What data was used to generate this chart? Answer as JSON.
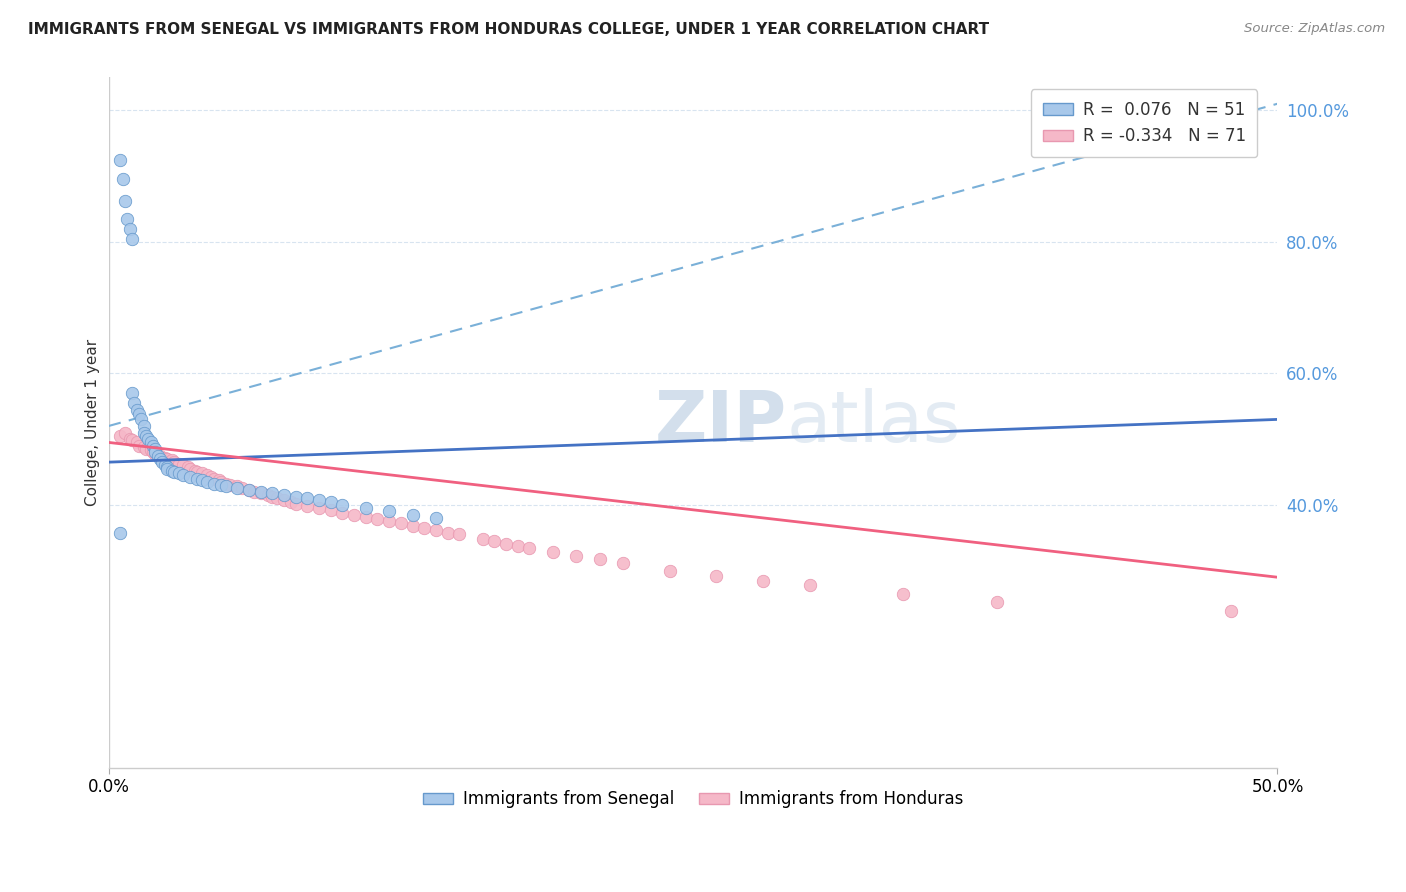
{
  "title": "IMMIGRANTS FROM SENEGAL VS IMMIGRANTS FROM HONDURAS COLLEGE, UNDER 1 YEAR CORRELATION CHART",
  "source": "Source: ZipAtlas.com",
  "ylabel": "College, Under 1 year",
  "r_senegal": 0.076,
  "n_senegal": 51,
  "r_honduras": -0.334,
  "n_honduras": 71,
  "senegal_dot_color": "#a8c8ea",
  "honduras_dot_color": "#f5b8c8",
  "senegal_line_color": "#4472c4",
  "honduras_line_color": "#f06080",
  "dashed_line_color": "#7ab0d8",
  "grid_color": "#d8e4f0",
  "watermark_color": "#c8d8e8",
  "xmin": 0.0,
  "xmax": 0.5,
  "ymin": 0.0,
  "ymax": 1.05,
  "ytick_positions": [
    0.4,
    0.6,
    0.8,
    1.0
  ],
  "ytick_labels": [
    "40.0%",
    "60.0%",
    "80.0%",
    "100.0%"
  ],
  "senegal_scatter_x": [
    0.005,
    0.006,
    0.007,
    0.008,
    0.009,
    0.01,
    0.01,
    0.011,
    0.012,
    0.013,
    0.014,
    0.015,
    0.015,
    0.016,
    0.017,
    0.018,
    0.019,
    0.02,
    0.02,
    0.021,
    0.022,
    0.023,
    0.024,
    0.025,
    0.025,
    0.027,
    0.028,
    0.03,
    0.032,
    0.035,
    0.038,
    0.04,
    0.042,
    0.045,
    0.048,
    0.05,
    0.055,
    0.06,
    0.065,
    0.07,
    0.075,
    0.08,
    0.085,
    0.09,
    0.095,
    0.1,
    0.11,
    0.12,
    0.13,
    0.14,
    0.005
  ],
  "senegal_scatter_y": [
    0.925,
    0.895,
    0.862,
    0.835,
    0.82,
    0.805,
    0.57,
    0.555,
    0.545,
    0.538,
    0.53,
    0.52,
    0.51,
    0.505,
    0.5,
    0.495,
    0.49,
    0.485,
    0.48,
    0.475,
    0.47,
    0.465,
    0.46,
    0.458,
    0.455,
    0.452,
    0.45,
    0.448,
    0.445,
    0.442,
    0.44,
    0.438,
    0.435,
    0.432,
    0.43,
    0.428,
    0.425,
    0.422,
    0.42,
    0.418,
    0.415,
    0.412,
    0.41,
    0.408,
    0.405,
    0.4,
    0.395,
    0.39,
    0.385,
    0.38,
    0.358
  ],
  "honduras_scatter_x": [
    0.005,
    0.007,
    0.009,
    0.01,
    0.012,
    0.013,
    0.015,
    0.016,
    0.018,
    0.019,
    0.02,
    0.022,
    0.024,
    0.025,
    0.027,
    0.028,
    0.03,
    0.032,
    0.034,
    0.035,
    0.037,
    0.038,
    0.04,
    0.042,
    0.044,
    0.045,
    0.047,
    0.048,
    0.05,
    0.052,
    0.055,
    0.057,
    0.06,
    0.062,
    0.065,
    0.068,
    0.07,
    0.072,
    0.075,
    0.078,
    0.08,
    0.085,
    0.09,
    0.095,
    0.1,
    0.105,
    0.11,
    0.115,
    0.12,
    0.125,
    0.13,
    0.135,
    0.14,
    0.145,
    0.15,
    0.16,
    0.165,
    0.17,
    0.175,
    0.18,
    0.19,
    0.2,
    0.21,
    0.22,
    0.24,
    0.26,
    0.28,
    0.3,
    0.34,
    0.38,
    0.48
  ],
  "honduras_scatter_y": [
    0.505,
    0.51,
    0.5,
    0.498,
    0.495,
    0.49,
    0.488,
    0.485,
    0.483,
    0.48,
    0.478,
    0.475,
    0.472,
    0.47,
    0.468,
    0.465,
    0.462,
    0.46,
    0.458,
    0.455,
    0.452,
    0.45,
    0.448,
    0.445,
    0.442,
    0.44,
    0.438,
    0.435,
    0.432,
    0.43,
    0.428,
    0.425,
    0.422,
    0.42,
    0.418,
    0.415,
    0.412,
    0.41,
    0.408,
    0.405,
    0.402,
    0.398,
    0.395,
    0.392,
    0.388,
    0.385,
    0.382,
    0.378,
    0.375,
    0.372,
    0.368,
    0.365,
    0.362,
    0.358,
    0.355,
    0.348,
    0.345,
    0.34,
    0.338,
    0.335,
    0.328,
    0.322,
    0.318,
    0.312,
    0.3,
    0.292,
    0.285,
    0.278,
    0.265,
    0.252,
    0.238
  ],
  "senegal_trend_x": [
    0.0,
    0.5
  ],
  "senegal_trend_y": [
    0.465,
    0.53
  ],
  "honduras_trend_x": [
    0.0,
    0.5
  ],
  "honduras_trend_y": [
    0.495,
    0.29
  ],
  "dashed_trend_x": [
    0.0,
    0.5
  ],
  "dashed_trend_y": [
    0.52,
    1.01
  ]
}
